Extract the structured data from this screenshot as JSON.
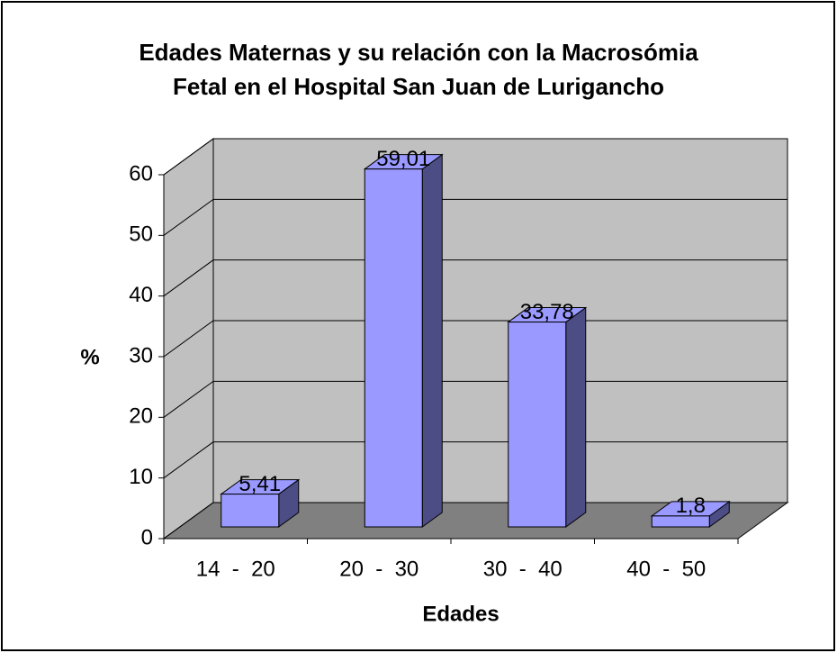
{
  "chart_data": {
    "type": "bar3d",
    "title": [
      "Edades Maternas y su relación con la Macrosómia",
      "Fetal en el Hospital San Juan de Lurigancho"
    ],
    "x_label": "Edades",
    "y_label": "%",
    "categories": [
      "14  -  20",
      "20  -  30",
      "30  -  40",
      "40  -  50"
    ],
    "values": [
      5.41,
      59.01,
      33.78,
      1.8
    ],
    "value_labels": [
      "5,41",
      "59,01",
      "33,78",
      "1,8"
    ],
    "color": "#9999ff",
    "ylim": [
      0,
      60
    ],
    "yticks": [
      0,
      10,
      20,
      30,
      40,
      50,
      60
    ],
    "grid": true
  }
}
